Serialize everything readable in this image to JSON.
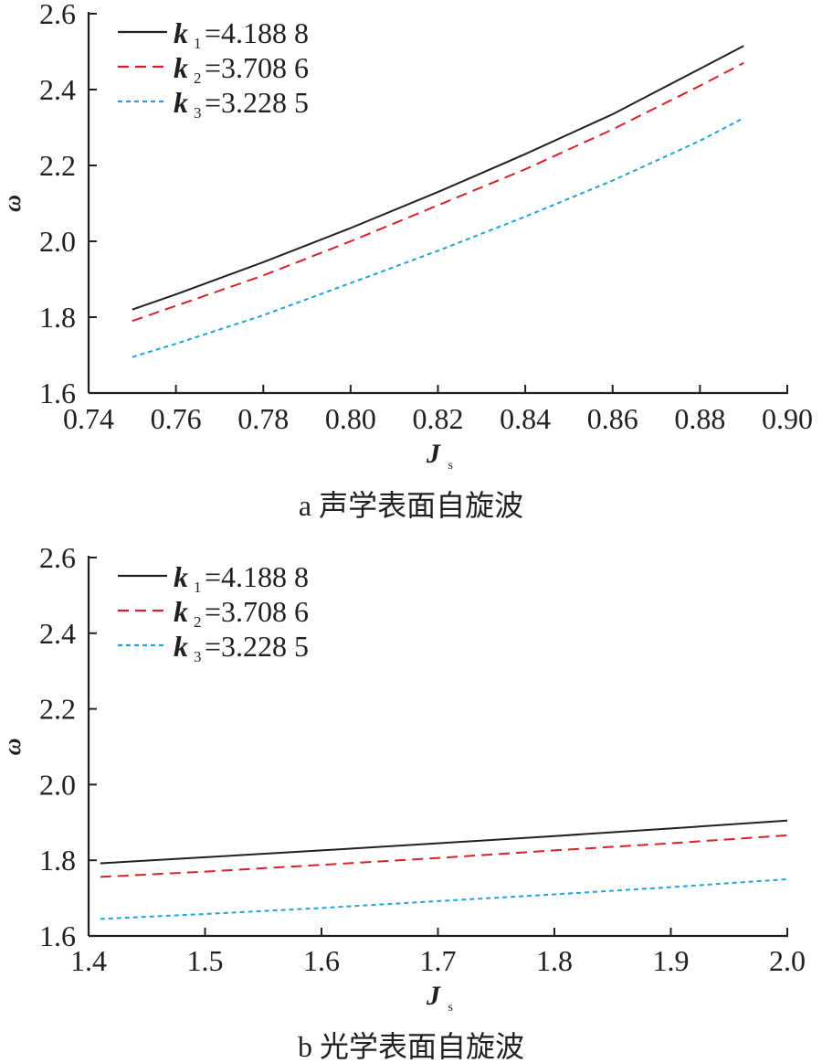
{
  "chart_data": [
    {
      "type": "line",
      "caption": "a 声学表面自旋波",
      "xlabel": "J",
      "xlabel_sub": "s",
      "ylabel": "ω",
      "xlim": [
        0.74,
        0.9
      ],
      "ylim": [
        1.6,
        2.6
      ],
      "xticks": [
        "0.74",
        "0.76",
        "0.78",
        "0.80",
        "0.82",
        "0.84",
        "0.86",
        "0.88",
        "0.90"
      ],
      "yticks": [
        "1.6",
        "1.8",
        "2.0",
        "2.2",
        "2.4",
        "2.6"
      ],
      "legend_position": "top-left",
      "x": [
        0.75,
        0.76,
        0.78,
        0.8,
        0.82,
        0.84,
        0.86,
        0.88,
        0.89
      ],
      "series": [
        {
          "name": "k",
          "sub": "1",
          "value_label": "=4.188 8",
          "color": "#231f20",
          "dash": "solid",
          "values": [
            1.82,
            1.86,
            1.945,
            2.035,
            2.13,
            2.23,
            2.335,
            2.455,
            2.515
          ]
        },
        {
          "name": "k",
          "sub": "2",
          "value_label": "=3.708 6",
          "color": "#d2232a",
          "dash": "dashed",
          "values": [
            1.79,
            1.83,
            1.91,
            2.0,
            2.095,
            2.19,
            2.295,
            2.41,
            2.47
          ]
        },
        {
          "name": "k",
          "sub": "3",
          "value_label": "=3.228 5",
          "color": "#1fa3d8",
          "dash": "dotted",
          "values": [
            1.695,
            1.73,
            1.805,
            1.89,
            1.975,
            2.065,
            2.16,
            2.265,
            2.325
          ]
        }
      ]
    },
    {
      "type": "line",
      "caption": "b 光学表面自旋波",
      "xlabel": "J",
      "xlabel_sub": "s",
      "ylabel": "ω",
      "xlim": [
        1.4,
        2.0
      ],
      "ylim": [
        1.6,
        2.6
      ],
      "xticks": [
        "1.4",
        "1.5",
        "1.6",
        "1.7",
        "1.8",
        "1.9",
        "2.0"
      ],
      "yticks": [
        "1.6",
        "1.8",
        "2.0",
        "2.2",
        "2.4",
        "2.6"
      ],
      "legend_position": "top-left",
      "x": [
        1.41,
        1.5,
        1.6,
        1.7,
        1.8,
        1.9,
        2.0
      ],
      "series": [
        {
          "name": "k",
          "sub": "1",
          "value_label": "=4.188 8",
          "color": "#231f20",
          "dash": "solid",
          "values": [
            1.792,
            1.808,
            1.826,
            1.845,
            1.864,
            1.884,
            1.905
          ]
        },
        {
          "name": "k",
          "sub": "2",
          "value_label": "=3.708 6",
          "color": "#d2232a",
          "dash": "dashed",
          "values": [
            1.756,
            1.77,
            1.788,
            1.806,
            1.826,
            1.845,
            1.866
          ]
        },
        {
          "name": "k",
          "sub": "3",
          "value_label": "=3.228 5",
          "color": "#1fa3d8",
          "dash": "dotted",
          "values": [
            1.645,
            1.658,
            1.674,
            1.692,
            1.71,
            1.729,
            1.75
          ]
        }
      ]
    }
  ]
}
